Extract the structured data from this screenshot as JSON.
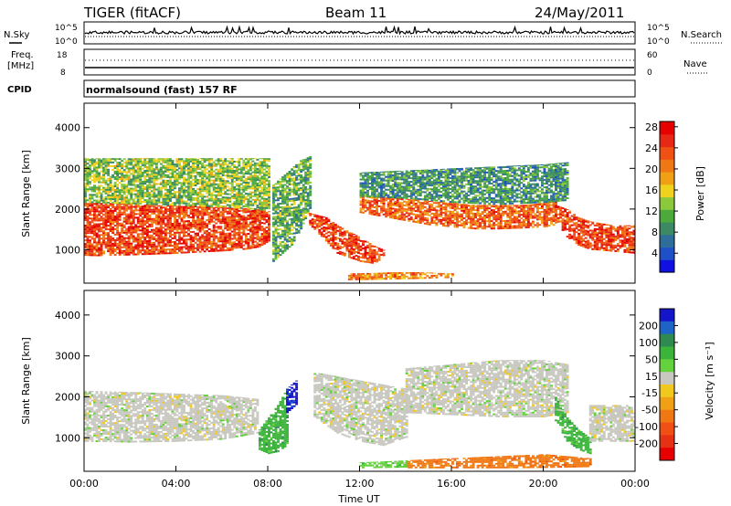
{
  "header": {
    "title": "TIGER (fitACF)",
    "beam": "Beam 11",
    "date": "24/May/2011"
  },
  "top_panels": {
    "nsky_label": "N.Sky",
    "nsearch_label": "N.Search",
    "noise_ticks_left": [
      "10^5",
      "10^0"
    ],
    "noise_ticks_right": [
      "10^5",
      "10^0"
    ],
    "freq_label": "Freq.",
    "freq_unit": "[MHz]",
    "freq_ticks": [
      "18",
      "8"
    ],
    "nave_label": "Nave",
    "nave_ticks": [
      "60",
      "0"
    ],
    "cpid_label": "CPID",
    "cpid_text": "normalsound (fast) 157 RF"
  },
  "chart_data": [
    {
      "type": "heatmap",
      "panel": "power",
      "ylabel": "Slant Range [km]",
      "xlabel": "",
      "ylim": [
        180,
        4600
      ],
      "yticks": [
        "1000",
        "2000",
        "3000",
        "4000"
      ],
      "xlim_hours": [
        0,
        24
      ],
      "colorbar": {
        "label": "Power [dB]",
        "ticks": [
          "4",
          "8",
          "12",
          "16",
          "20",
          "24",
          "28"
        ],
        "colors": [
          "#1010e0",
          "#1e50c8",
          "#2e6e9a",
          "#3c8a64",
          "#4caa3c",
          "#8cc83c",
          "#f0d21e",
          "#f0a014",
          "#f07814",
          "#f05014",
          "#e62814",
          "#e60000"
        ]
      },
      "echo_regions": [
        {
          "name": "dense-early",
          "t": [
            0,
            0.5,
            1,
            2,
            3,
            4,
            5,
            6,
            7,
            7.6,
            8
          ],
          "r_low": [
            850,
            840,
            850,
            860,
            880,
            900,
            930,
            960,
            1000,
            1060,
            1200
          ],
          "r_high": [
            2150,
            2150,
            2150,
            2120,
            2100,
            2080,
            2060,
            2040,
            2020,
            2000,
            1950
          ],
          "p": 26
        },
        {
          "name": "upper-early",
          "t": [
            0,
            2,
            4,
            6,
            8
          ],
          "r_low": [
            2150,
            2120,
            2080,
            2040,
            1950
          ],
          "r_high": [
            3250,
            3250,
            3250,
            3250,
            3250
          ],
          "p": 14
        },
        {
          "name": "vertical-feature",
          "t": [
            8.2,
            8.6,
            9,
            9.4,
            9.8
          ],
          "r_low": [
            700,
            900,
            1100,
            1500,
            2000
          ],
          "r_high": [
            2600,
            2800,
            3000,
            3200,
            3300
          ],
          "p": 12
        },
        {
          "name": "midday-patch",
          "t": [
            9.8,
            10.5,
            11,
            12,
            12.6,
            13
          ],
          "r_low": [
            1600,
            1200,
            900,
            700,
            650,
            800
          ],
          "r_high": [
            1900,
            1800,
            1600,
            1300,
            1100,
            1000
          ],
          "p": 26
        },
        {
          "name": "low-range-strip",
          "t": [
            11.5,
            12.5,
            13.5,
            14.5,
            15.5,
            16
          ],
          "r_low": [
            250,
            260,
            270,
            280,
            300,
            300
          ],
          "r_high": [
            420,
            430,
            450,
            450,
            430,
            420
          ],
          "p": 22
        },
        {
          "name": "afternoon-band",
          "t": [
            12,
            13,
            14,
            15,
            16,
            17,
            18,
            19,
            20,
            20.5
          ],
          "r_low": [
            1900,
            1800,
            1700,
            1600,
            1550,
            1500,
            1500,
            1520,
            1550,
            1600
          ],
          "r_high": [
            2300,
            2300,
            2250,
            2200,
            2150,
            2100,
            2100,
            2100,
            2150,
            2200
          ],
          "p": 24
        },
        {
          "name": "afternoon-upper",
          "t": [
            12,
            14,
            16,
            18,
            20,
            21
          ],
          "r_low": [
            2300,
            2250,
            2150,
            2100,
            2150,
            2200
          ],
          "r_high": [
            2900,
            2950,
            3000,
            3050,
            3100,
            3150
          ],
          "p": 10
        },
        {
          "name": "late-arc",
          "t": [
            20.5,
            21,
            21.5,
            22,
            23,
            24
          ],
          "r_low": [
            1700,
            1300,
            1100,
            1000,
            950,
            900
          ],
          "r_high": [
            2100,
            2000,
            1800,
            1700,
            1600,
            1600
          ],
          "p": 26
        }
      ]
    },
    {
      "type": "heatmap",
      "panel": "velocity",
      "ylabel": "Slant Range [km]",
      "xlabel": "Time UT",
      "ylim": [
        180,
        4600
      ],
      "yticks": [
        "1000",
        "2000",
        "3000",
        "4000"
      ],
      "xticks": [
        "00:00",
        "04:00",
        "08:00",
        "12:00",
        "16:00",
        "20:00",
        "00:00"
      ],
      "xlim_hours": [
        0,
        24
      ],
      "colorbar": {
        "label": "Velocity [m s⁻¹]",
        "ticks": [
          "200",
          "100",
          "50",
          "15",
          "-15",
          "-50",
          "-100",
          "-200"
        ],
        "colors": [
          "#1414c8",
          "#1e64c8",
          "#2e8a50",
          "#3cb43c",
          "#64d23c",
          "#c8c8c0",
          "#f0c81e",
          "#f0a014",
          "#f07814",
          "#f05014",
          "#e63214",
          "#e60000"
        ]
      },
      "echo_regions": [
        {
          "name": "gray-early",
          "t": [
            0,
            2,
            4,
            6,
            7.5
          ],
          "r_low": [
            900,
            880,
            900,
            950,
            1100
          ],
          "r_high": [
            2150,
            2120,
            2080,
            2040,
            1950
          ],
          "v": 0
        },
        {
          "name": "green-arc",
          "t": [
            7.6,
            8,
            8.4,
            8.8
          ],
          "r_low": [
            700,
            600,
            650,
            800
          ],
          "r_high": [
            1200,
            1500,
            1800,
            2200
          ],
          "v": 60
        },
        {
          "name": "blue-streak",
          "t": [
            8.8,
            9,
            9.2
          ],
          "r_low": [
            1600,
            1700,
            1800
          ],
          "r_high": [
            2200,
            2300,
            2400
          ],
          "v": 180
        },
        {
          "name": "gray-midday",
          "t": [
            10,
            11,
            12,
            13,
            14
          ],
          "r_low": [
            1500,
            1100,
            900,
            800,
            1000
          ],
          "r_high": [
            2600,
            2500,
            2400,
            2300,
            2200
          ],
          "v": 0
        },
        {
          "name": "gray-afternoon",
          "t": [
            14,
            16,
            18,
            20,
            21
          ],
          "r_low": [
            1600,
            1550,
            1500,
            1500,
            1600
          ],
          "r_high": [
            2700,
            2800,
            2900,
            2900,
            2800
          ],
          "v": 0
        },
        {
          "name": "green-late",
          "t": [
            20.5,
            21,
            21.5,
            22
          ],
          "r_low": [
            1400,
            900,
            700,
            600
          ],
          "r_high": [
            2000,
            1500,
            1200,
            1000
          ],
          "v": 50
        },
        {
          "name": "gray-late",
          "t": [
            22,
            23,
            24
          ],
          "r_low": [
            900,
            900,
            900
          ],
          "r_high": [
            1800,
            1800,
            1800
          ],
          "v": 0
        },
        {
          "name": "orange-low",
          "t": [
            14,
            16,
            18,
            20,
            22
          ],
          "r_low": [
            250,
            250,
            250,
            260,
            280
          ],
          "r_high": [
            450,
            500,
            550,
            600,
            500
          ],
          "v": -60
        },
        {
          "name": "green-low",
          "t": [
            12,
            13,
            14
          ],
          "r_low": [
            250,
            260,
            270
          ],
          "r_high": [
            400,
            420,
            450
          ],
          "v": 40
        }
      ]
    }
  ]
}
